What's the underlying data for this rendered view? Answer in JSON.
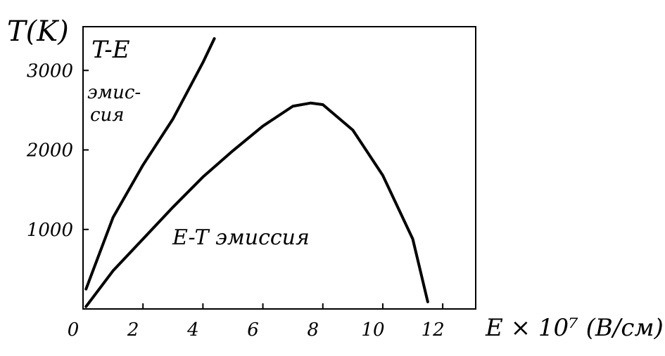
{
  "chart_data": {
    "type": "line",
    "y_label": "T(K)",
    "x_label": "E × 10⁷ (В/см)",
    "annotations": [
      "T-E",
      "эмис-",
      "сия",
      "E-T эмиссия"
    ],
    "xlim": [
      0,
      13.1
    ],
    "xticks": [
      0,
      2,
      4,
      6,
      8,
      10,
      12
    ],
    "ylim": [
      0,
      3550
    ],
    "yticks": [
      1000,
      2000,
      3000
    ],
    "grid": false,
    "series": [
      {
        "color": "#000000",
        "x": [
          0.1,
          1,
          2,
          3,
          4,
          4.38
        ],
        "values": [
          250,
          1150,
          1810,
          2390,
          3100,
          3400
        ]
      },
      {
        "color": "#000000",
        "x": [
          0.1,
          1,
          2,
          3,
          4,
          5,
          6,
          7,
          7.6,
          8,
          9,
          10,
          11,
          11.5
        ],
        "values": [
          30,
          480,
          880,
          1280,
          1660,
          1990,
          2300,
          2550,
          2590,
          2570,
          2250,
          1680,
          880,
          90
        ]
      }
    ]
  }
}
